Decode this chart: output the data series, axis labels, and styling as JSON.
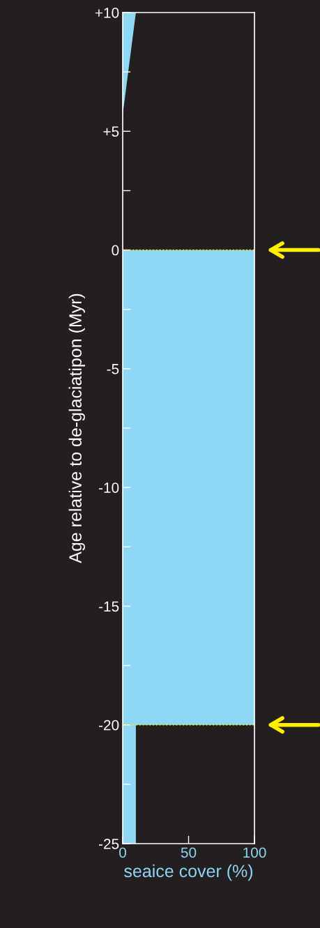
{
  "chart_data": {
    "type": "area",
    "orientation": "horizontal",
    "xlabel": "seaice cover (%)",
    "ylabel": "Age relative to de-glaciatipon (Myr)",
    "series": [
      {
        "color": "#8fd8f5",
        "x": [
          -25,
          -20,
          -20,
          0,
          0,
          5.7,
          10
        ],
        "values": [
          10,
          10,
          100,
          100,
          0,
          0,
          10
        ]
      }
    ],
    "xlim": [
      0,
      100
    ],
    "xticks": [
      0,
      50,
      100
    ],
    "ylim": [
      -25,
      10
    ],
    "yticks": [
      {
        "value": 10,
        "label": "+10"
      },
      {
        "value": 7.5,
        "label": null
      },
      {
        "value": 5,
        "label": "+5"
      },
      {
        "value": 2.5,
        "label": null
      },
      0,
      {
        "value": -2.5,
        "label": null
      },
      -5,
      {
        "value": -7.5,
        "label": null
      },
      -10,
      {
        "value": -12.5,
        "label": null
      },
      -15,
      {
        "value": -17.5,
        "label": null
      },
      -20,
      {
        "value": -22.5,
        "label": null
      },
      -25
    ],
    "ref_lines": [
      {
        "axis": "y",
        "value": 0,
        "color": "#ffee00",
        "line_style": "dotted"
      },
      {
        "axis": "y",
        "value": -20,
        "color": "#ffee00",
        "line_style": "dotted"
      }
    ],
    "grid": false,
    "legend": false
  }
}
